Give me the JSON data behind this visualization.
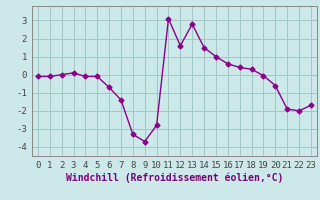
{
  "x": [
    0,
    1,
    2,
    3,
    4,
    5,
    6,
    7,
    8,
    9,
    10,
    11,
    12,
    13,
    14,
    15,
    16,
    17,
    18,
    19,
    20,
    21,
    22,
    23
  ],
  "y": [
    -0.1,
    -0.1,
    0.0,
    0.1,
    -0.1,
    -0.1,
    -0.7,
    -1.4,
    -3.3,
    -3.7,
    -2.8,
    3.1,
    1.6,
    2.8,
    1.5,
    1.0,
    0.6,
    0.4,
    0.3,
    -0.05,
    -0.6,
    -1.9,
    -2.0,
    -1.7
  ],
  "line_color": "#8B008B",
  "marker": "D",
  "marker_size": 2.5,
  "linewidth": 1.0,
  "background_color": "#cce8e8",
  "grid_color": "#a0c8c8",
  "xlabel": "Windchill (Refroidissement éolien,°C)",
  "xlabel_fontsize": 7,
  "xlim": [
    -0.5,
    23.5
  ],
  "ylim": [
    -4.5,
    3.8
  ],
  "xtick_labels": [
    "0",
    "1",
    "2",
    "3",
    "4",
    "5",
    "6",
    "7",
    "8",
    "9",
    "10",
    "11",
    "12",
    "13",
    "14",
    "15",
    "16",
    "17",
    "18",
    "19",
    "20",
    "21",
    "22",
    "23"
  ],
  "ytick_values": [
    -4,
    -3,
    -2,
    -1,
    0,
    1,
    2,
    3
  ],
  "tick_fontsize": 6.5
}
